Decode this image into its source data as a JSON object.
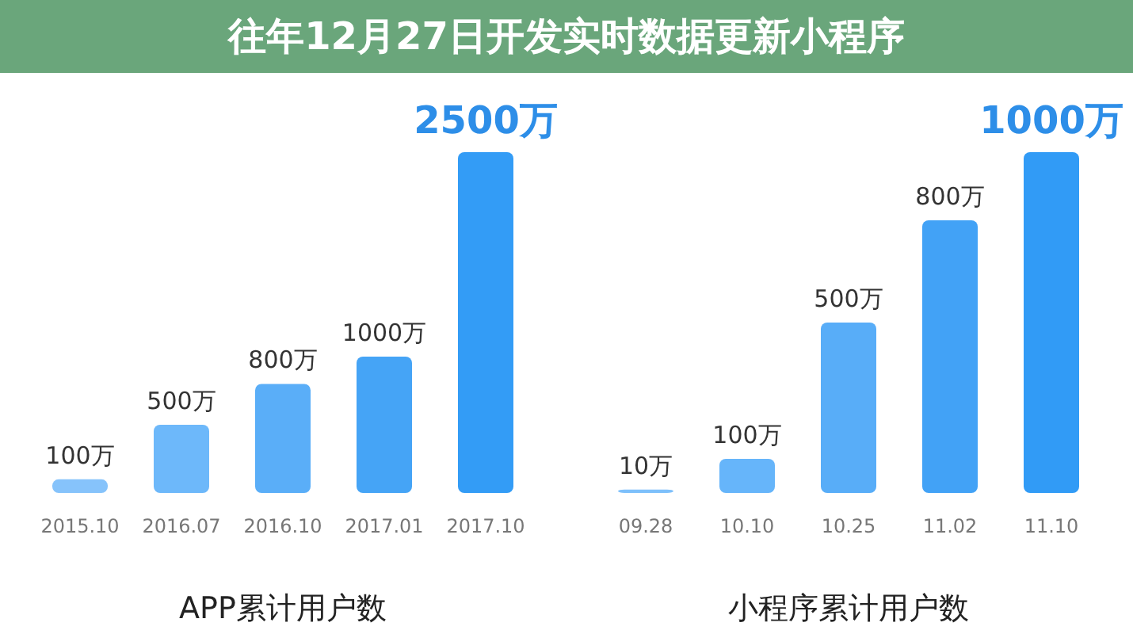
{
  "chart_data": [
    {
      "type": "bar",
      "title": "往年12月27日开发实时数据更新小程序",
      "xlabel": "APP累计用户数",
      "categories": [
        "2015.10",
        "2016.07",
        "2016.10",
        "2017.01",
        "2017.10"
      ],
      "values": [
        100,
        500,
        800,
        1000,
        2500
      ],
      "colors": [
        "#86c3fb",
        "#6db8fa",
        "#5aaef8",
        "#45a4f6",
        "#339cf6"
      ],
      "value_labels": [
        "100万",
        "500万",
        "800万",
        "1000万",
        "2500万"
      ]
    },
    {
      "type": "bar",
      "xlabel": "小程序累计用户数",
      "categories": [
        "09.28",
        "10.10",
        "10.25",
        "11.02",
        "11.10"
      ],
      "values": [
        10,
        100,
        500,
        800,
        1000
      ],
      "colors": [
        "#7ec0fb",
        "#66b5fa",
        "#58adf8",
        "#42a2f6",
        "#319bf6"
      ],
      "value_labels": [
        "10万",
        "100万",
        "500万",
        "800万",
        "1000万"
      ]
    }
  ]
}
